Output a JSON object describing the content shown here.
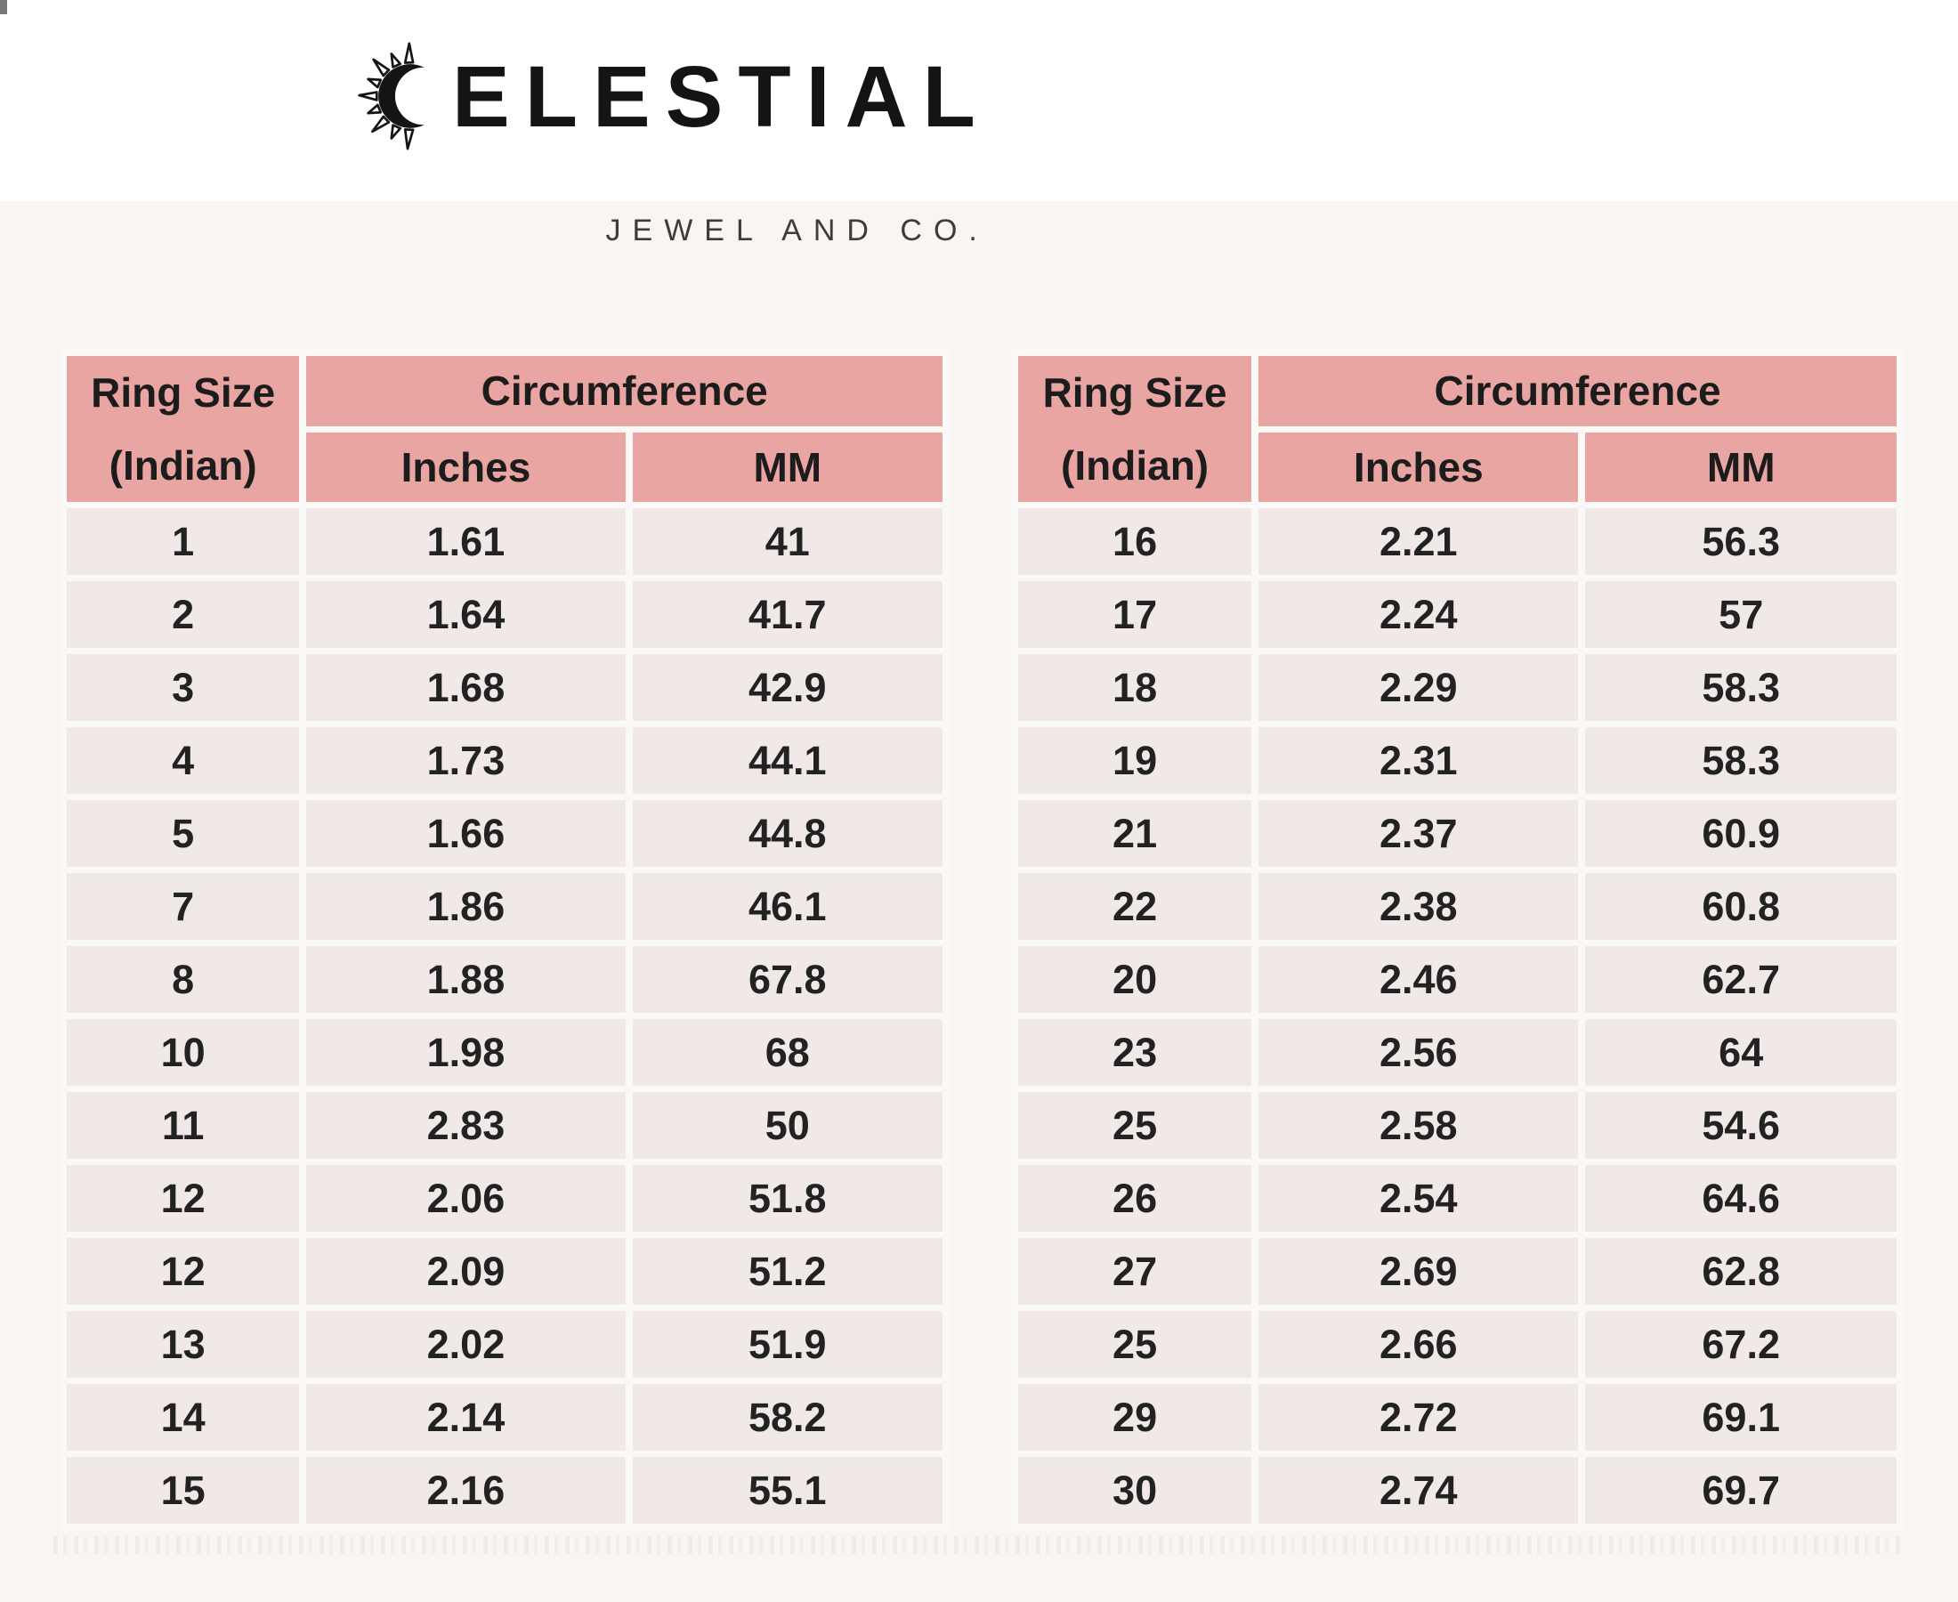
{
  "logo": {
    "brand_name": "CELESTIAL",
    "brand_letters": "ELESTIAL",
    "icon": "sun-crescent-icon",
    "subtitle": "JEWEL AND CO."
  },
  "table_headers": {
    "ring_size_line1": "Ring Size",
    "ring_size_line2": "(Indian)",
    "circumference": "Circumference",
    "inches": "Inches",
    "mm": "MM"
  },
  "colors": {
    "header_bg": "#e8a5a2",
    "row_bg": "#f1e9e8",
    "text": "#1e1e1e",
    "band": "#f8f5f3"
  },
  "chart_data": [
    {
      "type": "table",
      "title": "Ring size conversion chart (left table)",
      "columns": [
        "Ring Size (Indian)",
        "Circumference Inches",
        "Circumference MM"
      ],
      "rows": [
        [
          "1",
          "1.61",
          "41"
        ],
        [
          "2",
          "1.64",
          "41.7"
        ],
        [
          "3",
          "1.68",
          "42.9"
        ],
        [
          "4",
          "1.73",
          "44.1"
        ],
        [
          "5",
          "1.66",
          "44.8"
        ],
        [
          "7",
          "1.86",
          "46.1"
        ],
        [
          "8",
          "1.88",
          "67.8"
        ],
        [
          "10",
          "1.98",
          "68"
        ],
        [
          "11",
          "2.83",
          "50"
        ],
        [
          "12",
          "2.06",
          "51.8"
        ],
        [
          "12",
          "2.09",
          "51.2"
        ],
        [
          "13",
          "2.02",
          "51.9"
        ],
        [
          "14",
          "2.14",
          "58.2"
        ],
        [
          "15",
          "2.16",
          "55.1"
        ]
      ]
    },
    {
      "type": "table",
      "title": "Ring size conversion chart (right table)",
      "columns": [
        "Ring Size (Indian)",
        "Circumference Inches",
        "Circumference MM"
      ],
      "rows": [
        [
          "16",
          "2.21",
          "56.3"
        ],
        [
          "17",
          "2.24",
          "57"
        ],
        [
          "18",
          "2.29",
          "58.3"
        ],
        [
          "19",
          "2.31",
          "58.3"
        ],
        [
          "21",
          "2.37",
          "60.9"
        ],
        [
          "22",
          "2.38",
          "60.8"
        ],
        [
          "20",
          "2.46",
          "62.7"
        ],
        [
          "23",
          "2.56",
          "64"
        ],
        [
          "25",
          "2.58",
          "54.6"
        ],
        [
          "26",
          "2.54",
          "64.6"
        ],
        [
          "27",
          "2.69",
          "62.8"
        ],
        [
          "25",
          "2.66",
          "67.2"
        ],
        [
          "29",
          "2.72",
          "69.1"
        ],
        [
          "30",
          "2.74",
          "69.7"
        ]
      ]
    }
  ]
}
